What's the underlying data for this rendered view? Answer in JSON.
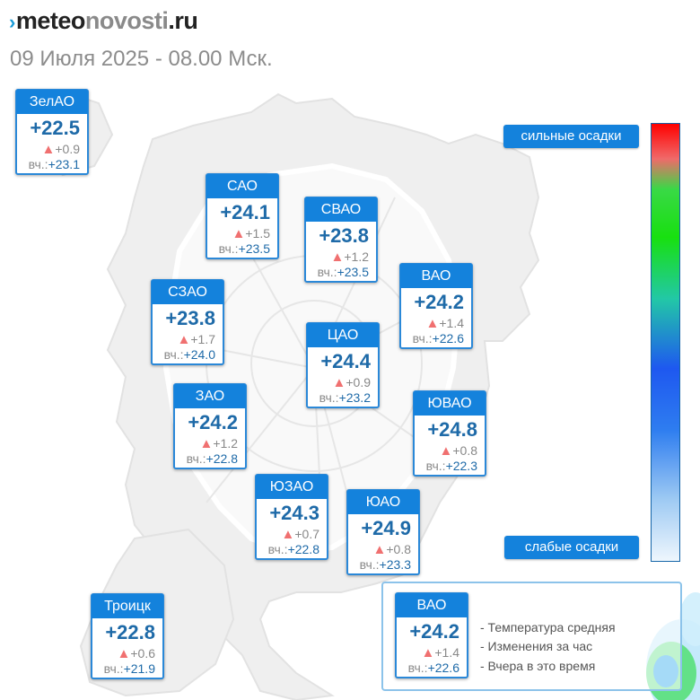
{
  "header": {
    "logo_mark": "›",
    "logo_dark": "meteo",
    "logo_light": "novosti",
    "logo_tail": ".ru",
    "date": "09 Июля 2025 - 08.00 Мск."
  },
  "districts": [
    {
      "id": "zelao",
      "name": "ЗелАО",
      "temp": "+22.5",
      "change": "+0.9",
      "yesterday_label": "вч.:",
      "yesterday": "+23.1"
    },
    {
      "id": "sao",
      "name": "САО",
      "temp": "+24.1",
      "change": "+1.5",
      "yesterday_label": "вч.:",
      "yesterday": "+23.5"
    },
    {
      "id": "svao",
      "name": "СВАО",
      "temp": "+23.8",
      "change": "+1.2",
      "yesterday_label": "вч.:",
      "yesterday": "+23.5"
    },
    {
      "id": "vao",
      "name": "ВАО",
      "temp": "+24.2",
      "change": "+1.4",
      "yesterday_label": "вч.:",
      "yesterday": "+22.6"
    },
    {
      "id": "szao",
      "name": "СЗАО",
      "temp": "+23.8",
      "change": "+1.7",
      "yesterday_label": "вч.:",
      "yesterday": "+24.0"
    },
    {
      "id": "cao",
      "name": "ЦАО",
      "temp": "+24.4",
      "change": "+0.9",
      "yesterday_label": "вч.:",
      "yesterday": "+23.2"
    },
    {
      "id": "zao",
      "name": "ЗАО",
      "temp": "+24.2",
      "change": "+1.2",
      "yesterday_label": "вч.:",
      "yesterday": "+22.8"
    },
    {
      "id": "yuvao",
      "name": "ЮВАО",
      "temp": "+24.8",
      "change": "+0.8",
      "yesterday_label": "вч.:",
      "yesterday": "+22.3"
    },
    {
      "id": "yuzao",
      "name": "ЮЗАО",
      "temp": "+24.3",
      "change": "+0.7",
      "yesterday_label": "вч.:",
      "yesterday": "+22.8"
    },
    {
      "id": "yuao",
      "name": "ЮАО",
      "temp": "+24.9",
      "change": "+0.8",
      "yesterday_label": "вч.:",
      "yesterday": "+23.3"
    },
    {
      "id": "troitsk",
      "name": "Троицк",
      "temp": "+22.8",
      "change": "+0.6",
      "yesterday_label": "вч.:",
      "yesterday": "+21.9"
    }
  ],
  "change_icon": "triangle-up-icon",
  "precip_scale": {
    "top_label": "сильные осадки",
    "bottom_label": "слабые осадки",
    "colors": [
      "#ff0000",
      "#39d946",
      "#1e58f0",
      "#eef6fd"
    ]
  },
  "legend": {
    "sample": {
      "name": "ВАО",
      "temp": "+24.2",
      "change": "+1.4",
      "yesterday_label": "вч.:",
      "yesterday": "+22.6"
    },
    "lines": [
      "- Температура средняя",
      "- Изменения за час",
      "- Вчера в это время"
    ]
  },
  "colors": {
    "accent": "#1482dc",
    "value": "#1e6aa8",
    "up": "#f07070",
    "muted": "#8c8c8c"
  }
}
